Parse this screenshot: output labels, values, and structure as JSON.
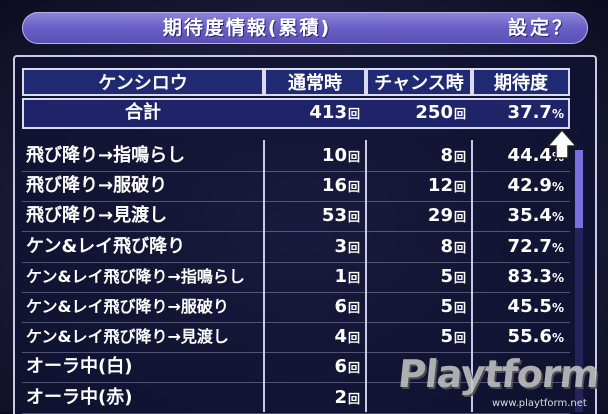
{
  "header": {
    "title": "期待度情報(累積)",
    "setting": "設定？"
  },
  "table": {
    "columns": [
      "ケンシロウ",
      "通常時",
      "チャンス時",
      "期待度"
    ],
    "summary": {
      "name": "合計",
      "normal": "413",
      "chance": "250",
      "rate": "37.7",
      "unit": "回",
      "pct": "%"
    },
    "rows": [
      {
        "name": "飛び降り→指鳴らし",
        "normal": "10",
        "chance": "8",
        "rate": "44.4"
      },
      {
        "name": "飛び降り→服破り",
        "normal": "16",
        "chance": "12",
        "rate": "42.9"
      },
      {
        "name": "飛び降り→見渡し",
        "normal": "53",
        "chance": "29",
        "rate": "35.4"
      },
      {
        "name": "ケン&レイ飛び降り",
        "normal": "3",
        "chance": "8",
        "rate": "72.7"
      },
      {
        "name": "ケン&レイ飛び降り→指鳴らし",
        "normal": "1",
        "chance": "5",
        "rate": "83.3"
      },
      {
        "name": "ケン&レイ飛び降り→服破り",
        "normal": "6",
        "chance": "5",
        "rate": "45.5"
      },
      {
        "name": "ケン&レイ飛び降り→見渡し",
        "normal": "4",
        "chance": "5",
        "rate": "55.6"
      },
      {
        "name": "オーラ中(白)",
        "normal": "6",
        "chance": "",
        "rate": ""
      },
      {
        "name": "オーラ中(赤)",
        "normal": "2",
        "chance": "",
        "rate": ""
      }
    ],
    "unit": "回",
    "pct": "%"
  },
  "scrollbar": {
    "position": 0.0
  },
  "watermark": {
    "logo": "Playtform",
    "url": "www.playtform.net"
  },
  "colors": {
    "header": "#6a5fc6",
    "header_cells": "#202a72",
    "border": "#d9d9f0",
    "thumb": "#7b6fe0"
  }
}
